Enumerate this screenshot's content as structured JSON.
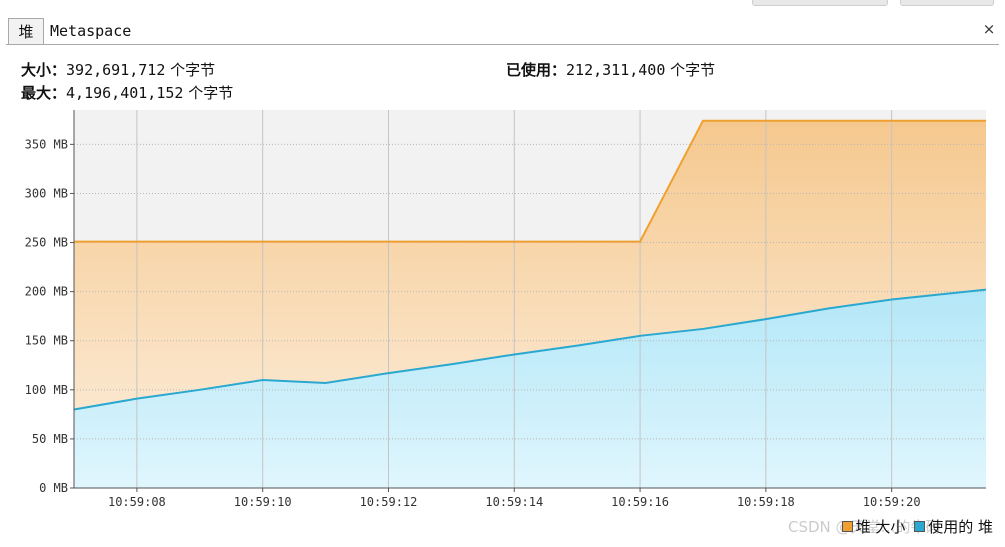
{
  "tabs": [
    {
      "label": "堆",
      "active": true
    },
    {
      "label": "Metaspace",
      "active": false
    }
  ],
  "close_glyph": "×",
  "stats": {
    "size_label": "大小：",
    "size_value": "392,691,712",
    "max_label": "最大：",
    "max_value": "4,196,401,152",
    "used_label": "已使用：",
    "used_value": "212,311,400",
    "unit": "个字节"
  },
  "colors": {
    "heap_size_line": "#f0a030",
    "heap_size_fill_top": "#f5c88e",
    "heap_size_fill_bottom": "#fdf0e0",
    "used_line": "#2aa8d0",
    "used_fill_top": "#b3e7f8",
    "used_fill_bottom": "#e0f6fd",
    "plot_background": "#f2f2f2"
  },
  "chart_data": {
    "type": "area",
    "x_unit": "time",
    "x_ticks": [
      "10:59:08",
      "10:59:10",
      "10:59:12",
      "10:59:14",
      "10:59:16",
      "10:59:18",
      "10:59:20"
    ],
    "y_ticks": [
      "0 MB",
      "50 MB",
      "100 MB",
      "150 MB",
      "200 MB",
      "250 MB",
      "300 MB",
      "350 MB"
    ],
    "ylim": [
      0,
      385
    ],
    "xlim": [
      "10:59:07",
      "10:59:21.5"
    ],
    "grid": true,
    "legend_position": "bottom-right",
    "series": [
      {
        "name": "堆 大小",
        "x": [
          "10:59:07",
          "10:59:16",
          "10:59:17",
          "10:59:21.5"
        ],
        "values": [
          251,
          251,
          374,
          374
        ]
      },
      {
        "name": "使用的 堆",
        "x": [
          "10:59:07",
          "10:59:08",
          "10:59:09",
          "10:59:10",
          "10:59:11",
          "10:59:12",
          "10:59:13",
          "10:59:14",
          "10:59:15",
          "10:59:16",
          "10:59:17",
          "10:59:18",
          "10:59:19",
          "10:59:20",
          "10:59:21.5"
        ],
        "values": [
          80,
          91,
          100,
          110,
          107,
          117,
          126,
          136,
          145,
          155,
          162,
          172,
          183,
          192,
          202
        ]
      }
    ]
  },
  "legend": [
    {
      "name": "堆 大小",
      "color": "#f0a030"
    },
    {
      "name": "使用的 堆",
      "color": "#2aa8d0"
    }
  ],
  "watermark": "CSDN @天堂…的牛码"
}
